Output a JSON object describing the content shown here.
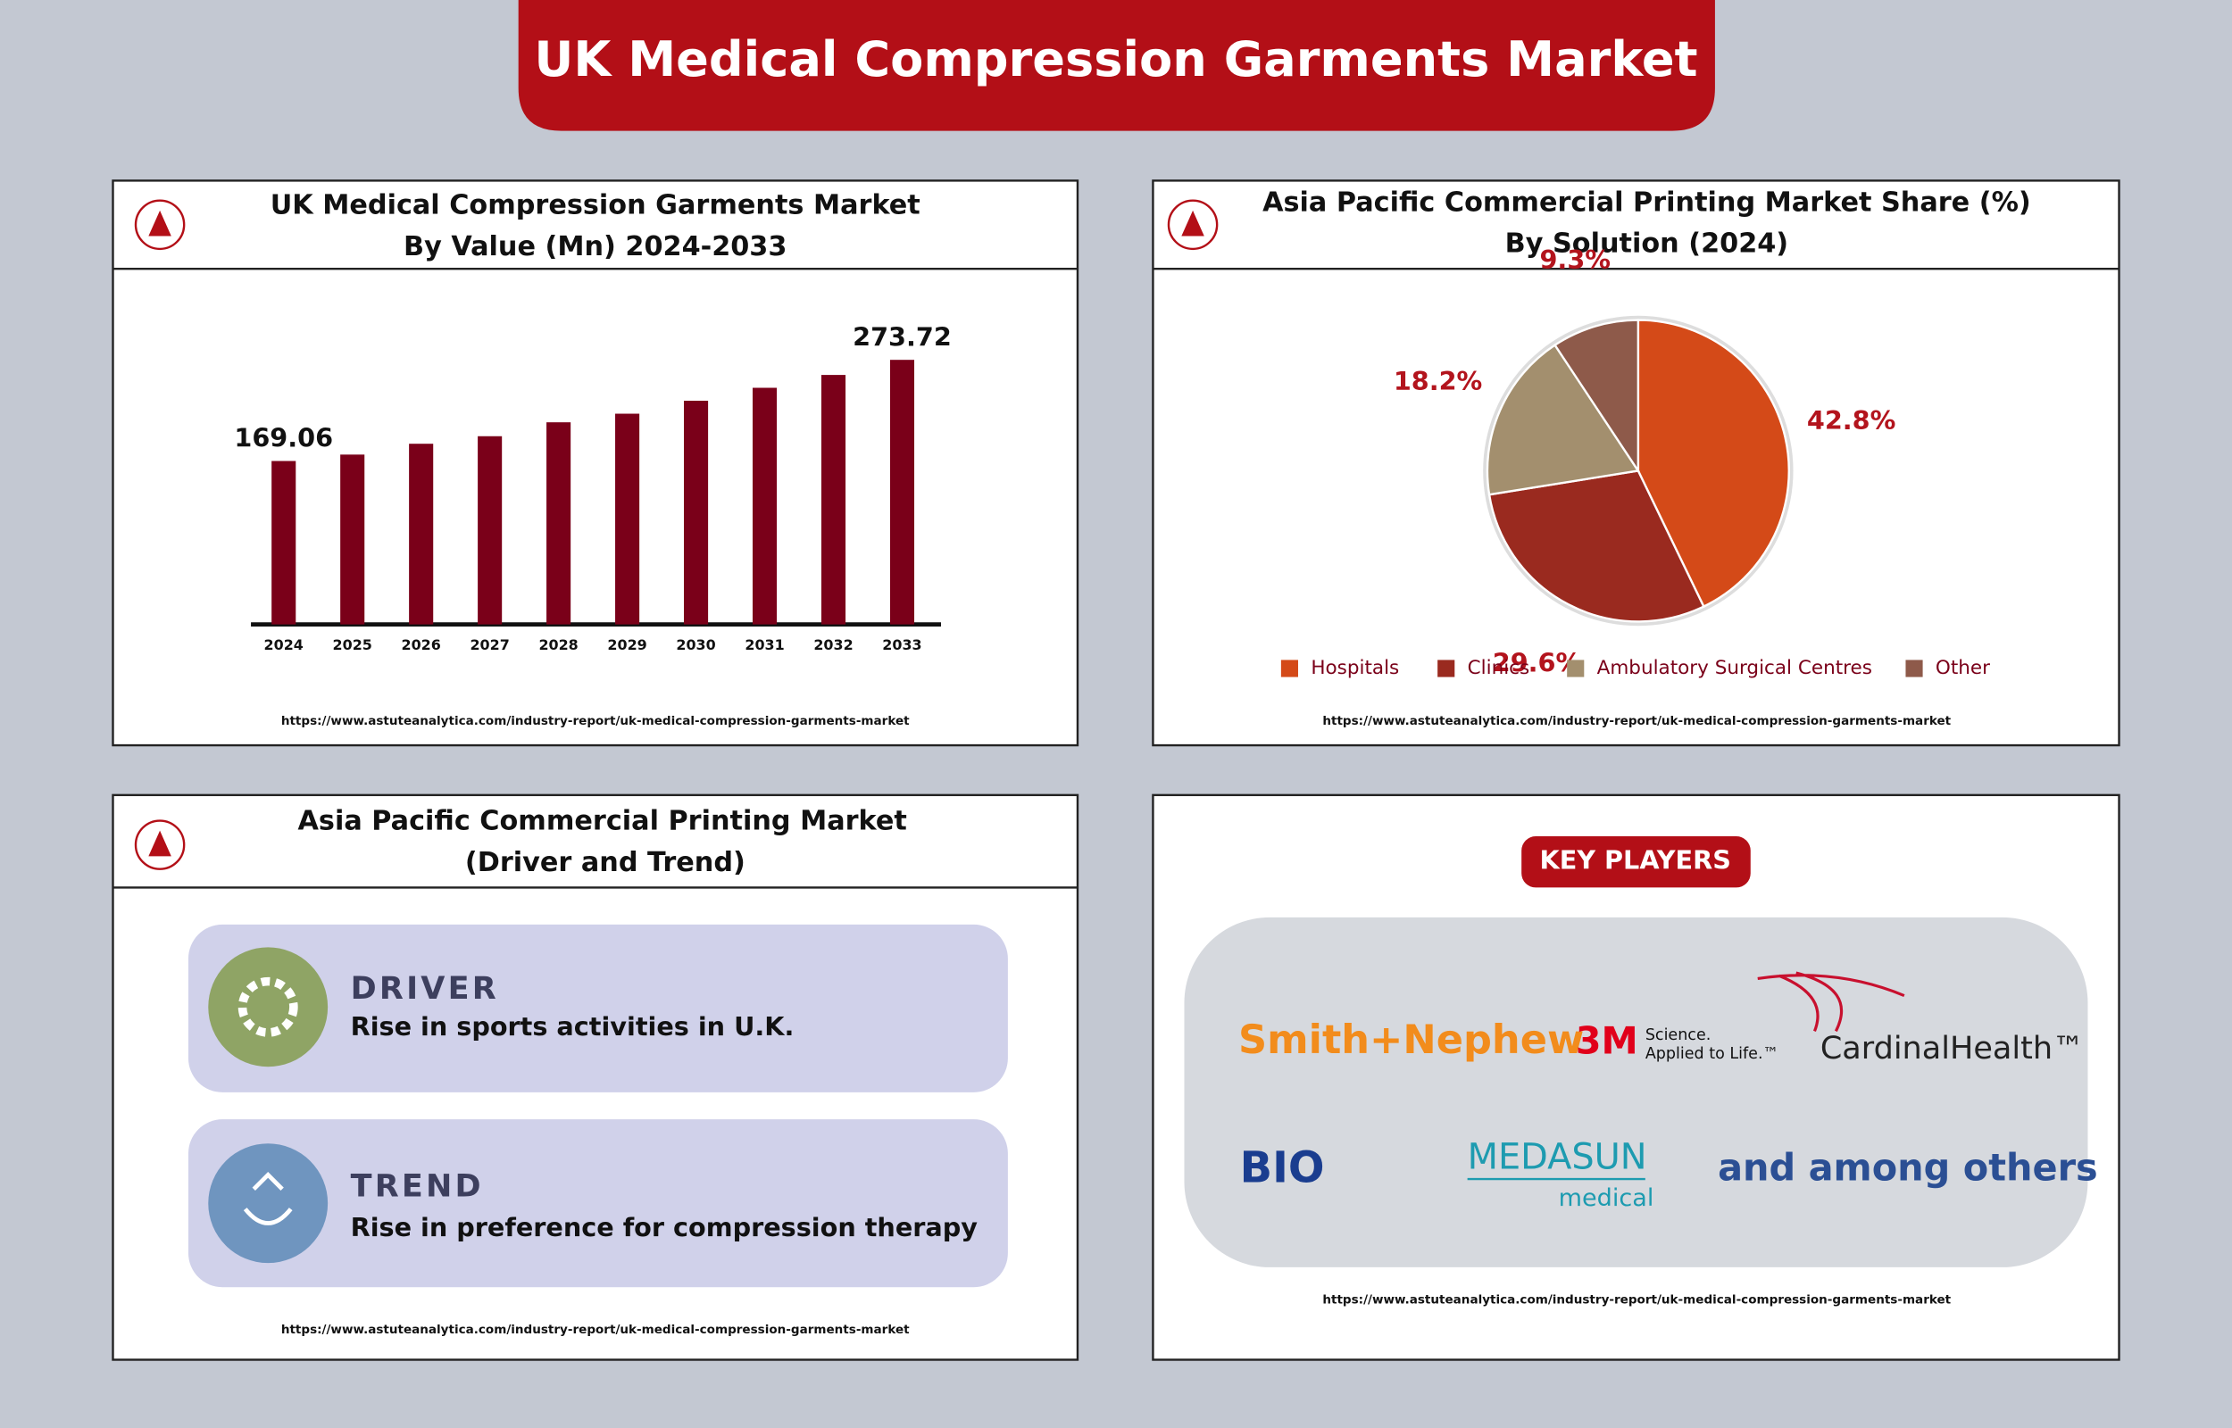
{
  "header": {
    "title": "UK Medical Compression Garments Market"
  },
  "chart_data": [
    {
      "type": "bar",
      "title": "UK Medical Compression Garments Market",
      "subtitle": "By Value (Mn) 2024-2033",
      "categories": [
        "2024",
        "2025",
        "2026",
        "2027",
        "2028",
        "2029",
        "2030",
        "2031",
        "2032",
        "2033"
      ],
      "values": [
        169.06,
        175.7,
        186.9,
        194.7,
        209.1,
        218.0,
        231.4,
        244.8,
        258.1,
        273.72
      ],
      "color": "#7a0019",
      "source": "https://www.astuteanalytica.com/industry-report/uk-medical-compression-garments-market"
    },
    {
      "type": "pie",
      "title": "Asia Pacific Commercial Printing Market Share (%)",
      "subtitle": "By Solution (2024)",
      "categories": [
        "Hospitals",
        "Clinics",
        "Ambulatory Surgical Centres",
        "Other"
      ],
      "values": [
        42.8,
        29.6,
        18.2,
        9.3
      ],
      "value_labels": [
        "42.8%",
        "29.6%",
        "18.2%",
        "9.3%"
      ],
      "colors": [
        "#d44a18",
        "#9a2a1f",
        "#a38f6e",
        "#8e5a4a"
      ],
      "source": "https://www.astuteanalytica.com/industry-report/uk-medical-compression-garments-market"
    }
  ],
  "drivers": {
    "title": "Asia Pacific Commercial Printing Market",
    "subtitle": "(Driver and Trend)",
    "items": [
      {
        "heading": "DRIVER",
        "text": "Rise in sports activities in U.K."
      },
      {
        "heading": "TREND",
        "text": "Rise in preference for compression therapy"
      }
    ],
    "source": "https://www.astuteanalytica.com/industry-report/uk-medical-compression-garments-market"
  },
  "key_players": {
    "title": "KEY PLAYERS",
    "players": [
      "Smith+Nephew",
      "3M",
      "Science.",
      "Applied to Life.™",
      "CardinalHealth™",
      "BIO",
      "MEDASUN",
      "medical",
      "and among others"
    ],
    "source": "https://www.astuteanalytica.com/industry-report/uk-medical-compression-garments-market"
  }
}
